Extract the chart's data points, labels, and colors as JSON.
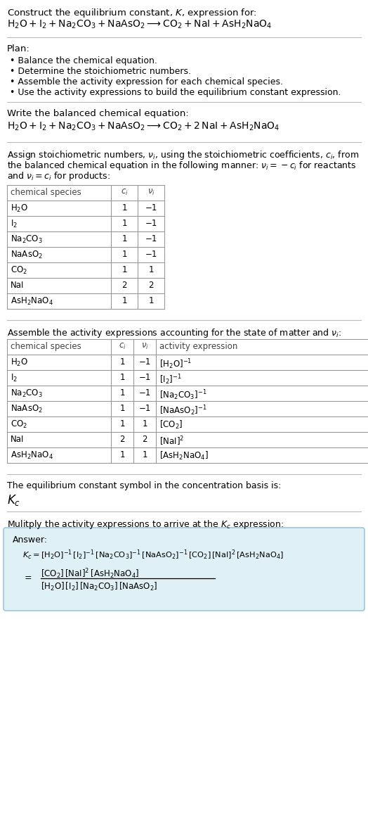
{
  "title_line1": "Construct the equilibrium constant, $K$, expression for:",
  "reaction_unbalanced": "$\\mathrm{H_2O + I_2 + Na_2CO_3 + NaAsO_2 \\longrightarrow CO_2 + NaI + AsH_2NaO_4}$",
  "plan_header": "Plan:",
  "plan_items": [
    "• Balance the chemical equation.",
    "• Determine the stoichiometric numbers.",
    "• Assemble the activity expression for each chemical species.",
    "• Use the activity expressions to build the equilibrium constant expression."
  ],
  "balanced_header": "Write the balanced chemical equation:",
  "reaction_balanced": "$\\mathrm{H_2O + I_2 + Na_2CO_3 + NaAsO_2 \\longrightarrow CO_2 + 2\\,NaI + AsH_2NaO_4}$",
  "stoich_intro_lines": [
    "Assign stoichiometric numbers, $\\nu_i$, using the stoichiometric coefficients, $c_i$, from",
    "the balanced chemical equation in the following manner: $\\nu_i = -c_i$ for reactants",
    "and $\\nu_i = c_i$ for products:"
  ],
  "table1_col_headers": [
    "chemical species",
    "$c_i$",
    "$\\nu_i$"
  ],
  "table1_rows": [
    [
      "$\\mathrm{H_2O}$",
      "1",
      "−1"
    ],
    [
      "$\\mathrm{I_2}$",
      "1",
      "−1"
    ],
    [
      "$\\mathrm{Na_2CO_3}$",
      "1",
      "−1"
    ],
    [
      "$\\mathrm{NaAsO_2}$",
      "1",
      "−1"
    ],
    [
      "$\\mathrm{CO_2}$",
      "1",
      "1"
    ],
    [
      "NaI",
      "2",
      "2"
    ],
    [
      "$\\mathrm{AsH_2NaO_4}$",
      "1",
      "1"
    ]
  ],
  "activity_intro": "Assemble the activity expressions accounting for the state of matter and $\\nu_i$:",
  "table2_col_headers": [
    "chemical species",
    "$c_i$",
    "$\\nu_i$",
    "activity expression"
  ],
  "table2_rows": [
    [
      "$\\mathrm{H_2O}$",
      "1",
      "−1",
      "$[\\mathrm{H_2O}]^{-1}$"
    ],
    [
      "$\\mathrm{I_2}$",
      "1",
      "−1",
      "$[\\mathrm{I_2}]^{-1}$"
    ],
    [
      "$\\mathrm{Na_2CO_3}$",
      "1",
      "−1",
      "$[\\mathrm{Na_2CO_3}]^{-1}$"
    ],
    [
      "$\\mathrm{NaAsO_2}$",
      "1",
      "−1",
      "$[\\mathrm{NaAsO_2}]^{-1}$"
    ],
    [
      "$\\mathrm{CO_2}$",
      "1",
      "1",
      "$[\\mathrm{CO_2}]$"
    ],
    [
      "NaI",
      "2",
      "2",
      "$[\\mathrm{NaI}]^2$"
    ],
    [
      "$\\mathrm{AsH_2NaO_4}$",
      "1",
      "1",
      "$[\\mathrm{AsH_2NaO_4}]$"
    ]
  ],
  "kc_intro": "The equilibrium constant symbol in the concentration basis is:",
  "kc_symbol": "$K_c$",
  "multiply_intro": "Mulitply the activity expressions to arrive at the $K_c$ expression:",
  "answer_label": "Answer:",
  "answer_eq1": "$K_c = [\\mathrm{H_2O}]^{-1}\\,[\\mathrm{I_2}]^{-1}\\,[\\mathrm{Na_2CO_3}]^{-1}\\,[\\mathrm{NaAsO_2}]^{-1}\\,[\\mathrm{CO_2}]\\,[\\mathrm{NaI}]^2\\,[\\mathrm{AsH_2NaO_4}]$",
  "answer_eq2a": "$[\\mathrm{CO_2}]\\,[\\mathrm{NaI}]^2\\,[\\mathrm{AsH_2NaO_4}]$",
  "answer_eq2b": "$[\\mathrm{H_2O}]\\,[\\mathrm{I_2}]\\,[\\mathrm{Na_2CO_3}]\\,[\\mathrm{NaAsO_2}]$",
  "bg_color": "#ffffff",
  "line_color": "#bbbbbb",
  "table_line_color": "#999999",
  "box_face_color": "#dff0f7",
  "box_edge_color": "#9dc8d8"
}
